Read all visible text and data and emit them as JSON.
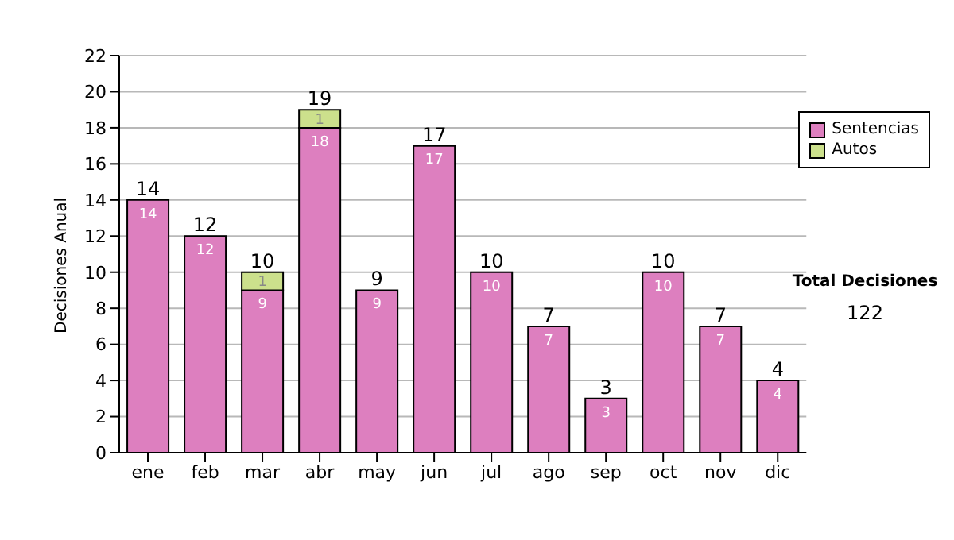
{
  "chart_data": {
    "type": "bar",
    "stacked": true,
    "ylabel": "Decisiones Anual",
    "categories": [
      "ene",
      "feb",
      "mar",
      "abr",
      "may",
      "jun",
      "jul",
      "ago",
      "sep",
      "oct",
      "nov",
      "dic"
    ],
    "series": [
      {
        "name": "Sentencias",
        "color": "#dd7fbf",
        "values": [
          14,
          12,
          9,
          18,
          9,
          17,
          10,
          7,
          3,
          10,
          7,
          4
        ]
      },
      {
        "name": "Autos",
        "color": "#cce08c",
        "values": [
          null,
          null,
          1,
          1,
          null,
          null,
          null,
          null,
          null,
          null,
          null,
          null
        ]
      }
    ],
    "totals": [
      "14",
      "12",
      "10",
      "19",
      "9",
      "17",
      "10",
      "7",
      "3",
      "10",
      "7",
      "4"
    ],
    "ylim": [
      0,
      22
    ],
    "yticks": [
      0,
      2,
      4,
      6,
      8,
      10,
      12,
      14,
      16,
      18,
      20,
      22
    ],
    "grid": "y",
    "legend": "right",
    "data_labels": true,
    "annotations": [
      "Total Decisiones",
      "122"
    ]
  }
}
